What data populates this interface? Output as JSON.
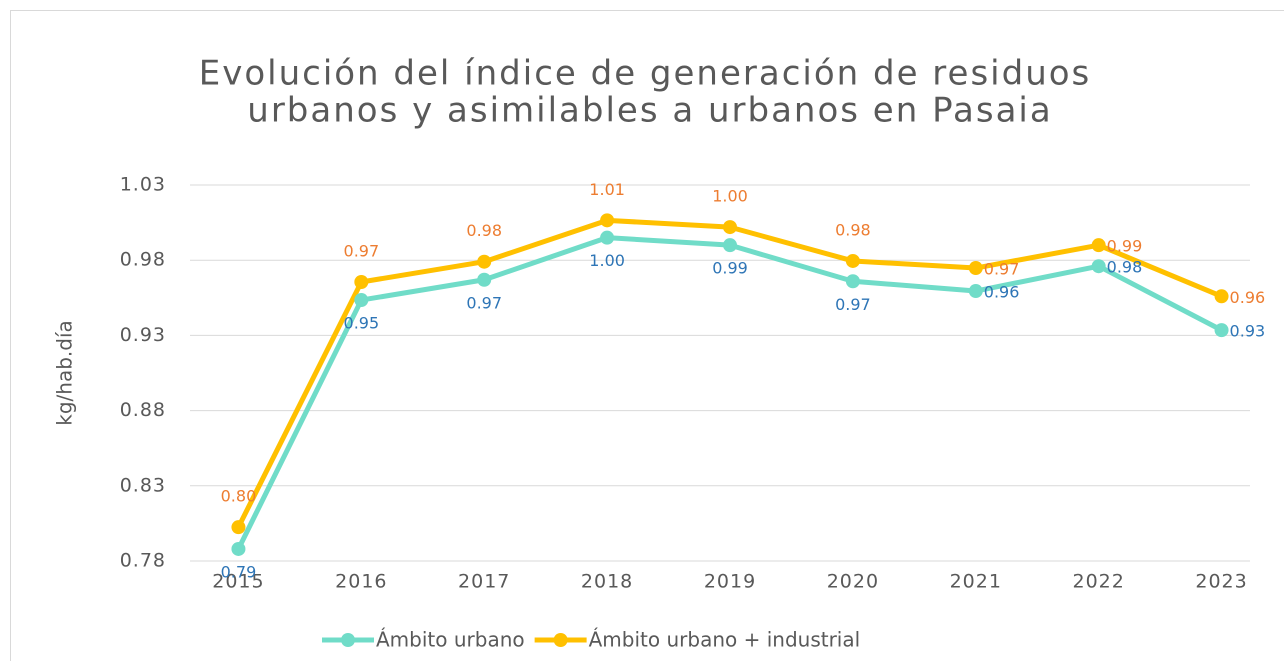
{
  "chart_data": {
    "type": "line",
    "title": [
      "Evolución del índice de generación de residuos",
      "urbanos y asimilables a urbanos en Pasaia"
    ],
    "y_label": "kg/hab.día",
    "categories": [
      "2015",
      "2016",
      "2017",
      "2018",
      "2019",
      "2020",
      "2021",
      "2022",
      "2023"
    ],
    "series": [
      {
        "name": "Ámbito urbano",
        "color": "#70dcc8",
        "label_color": "#2e75b6",
        "values": [
          0.788,
          0.9535,
          0.967,
          0.995,
          0.99,
          0.966,
          0.9595,
          0.976,
          0.9335
        ],
        "value_labels": [
          "0.79",
          "0.95",
          "0.97",
          "1.00",
          "0.99",
          "0.97",
          "0.96",
          "0.98",
          "0.93"
        ]
      },
      {
        "name": "Ámbito urbano +  industrial",
        "color": "#ffc000",
        "label_color": "#ed7d31",
        "values": [
          0.8025,
          0.9655,
          0.979,
          1.0065,
          1.002,
          0.9795,
          0.9748,
          0.99,
          0.956
        ],
        "value_labels": [
          "0.80",
          "0.97",
          "0.98",
          "1.01",
          "1.00",
          "0.98",
          "0.97",
          "0.99",
          "0.96"
        ]
      }
    ],
    "ylim": [
      0.78,
      1.03
    ],
    "yticks": [
      0.78,
      0.83,
      0.88,
      0.93,
      0.98,
      1.03
    ],
    "grid": true,
    "legend": "bottom"
  }
}
